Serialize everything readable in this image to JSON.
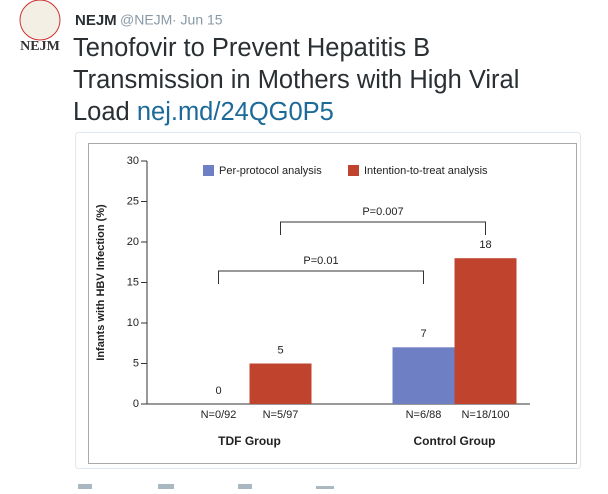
{
  "author": {
    "name": "NEJM",
    "handle": "@NEJM",
    "date": "· Jun 15",
    "logo": "NEJM"
  },
  "tweet": {
    "text": "Tenofovir to Prevent Hepatitis B Transmission in Mothers with High Viral Load",
    "link": "nej.md/24QG0P5"
  },
  "chart_data": {
    "type": "bar",
    "ylabel": "Infants with HBV Infection (%)",
    "categories": [
      "TDF Group",
      "Control Group"
    ],
    "series": [
      {
        "name": "Per-protocol analysis",
        "color": "#6f7fc4",
        "values": [
          0,
          7
        ],
        "n_labels": [
          "N=0/92",
          "N=6/88"
        ]
      },
      {
        "name": "Intention-to-treat analysis",
        "color": "#c0432e",
        "values": [
          5,
          18
        ],
        "n_labels": [
          "N=5/97",
          "N=18/100"
        ]
      }
    ],
    "ylim": [
      0,
      30
    ],
    "yticks": [
      0,
      5,
      10,
      15,
      20,
      25,
      30
    ],
    "annotations": [
      {
        "label": "P=0.01"
      },
      {
        "label": "P=0.007"
      }
    ]
  }
}
